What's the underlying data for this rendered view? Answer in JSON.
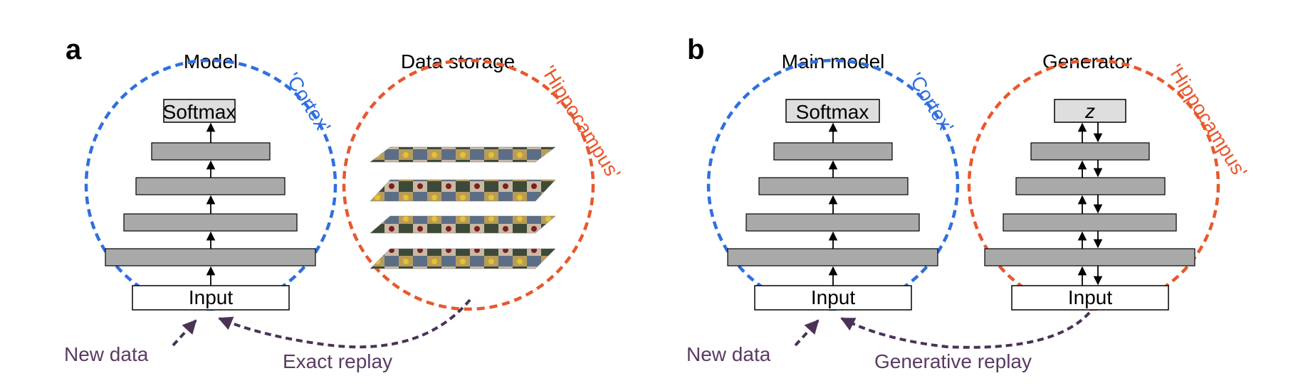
{
  "colors": {
    "cortex": "#2f6fe0",
    "hippocampus": "#e8582d",
    "replay": "#4a3356",
    "layer": "#a9a9a9",
    "softmax_box": "#dedede"
  },
  "panel_a": {
    "letter": "a",
    "model_title": "Model",
    "storage_title": "Data storage",
    "cortex_label": "'Cortex'",
    "hippocampus_label": "'Hippocampus'",
    "softmax_label": "Softmax",
    "input_label": "Input",
    "new_data_label": "New data",
    "replay_label": "Exact replay"
  },
  "panel_b": {
    "letter": "b",
    "model_title": "Main model",
    "generator_title": "Generator",
    "cortex_label": "'Cortex'",
    "hippocampus_label": "'Hippocampus'",
    "softmax_label": "Softmax",
    "input_label": "Input",
    "generator_input_label": "Input",
    "z_label": "z",
    "new_data_label": "New data",
    "replay_label": "Generative replay"
  }
}
